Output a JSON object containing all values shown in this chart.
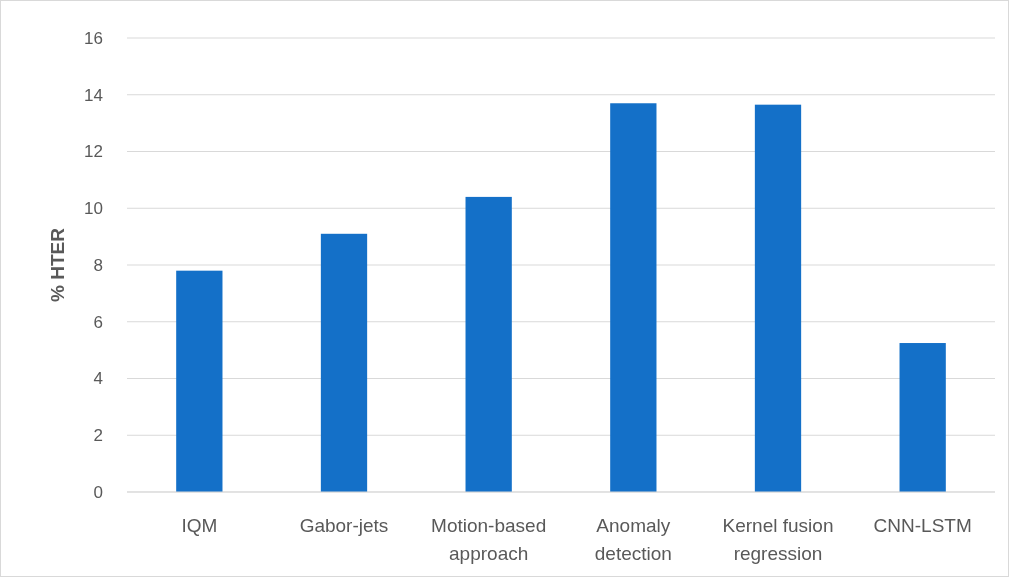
{
  "chart_data": {
    "type": "bar",
    "ylabel": "% HTER",
    "categories": [
      "IQM",
      "Gabor-jets",
      "Motion-based approach",
      "Anomaly detection",
      "Kernel fusion regression",
      "CNN-LSTM"
    ],
    "values": [
      7.8,
      9.1,
      10.4,
      13.7,
      13.65,
      5.25
    ],
    "color": "#1470c8",
    "ylim": [
      0,
      16
    ],
    "yticks": [
      0,
      2,
      4,
      6,
      8,
      10,
      12,
      14,
      16
    ],
    "grid": "y"
  }
}
